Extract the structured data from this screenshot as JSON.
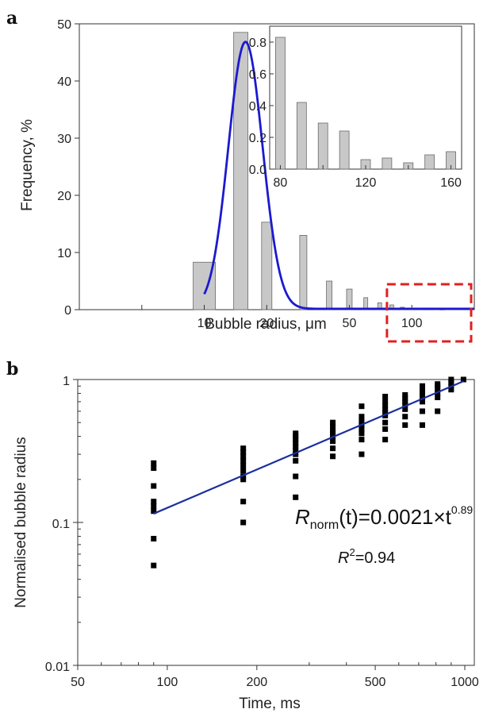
{
  "panels": {
    "a": "a",
    "b": "b"
  },
  "chart_data": [
    {
      "id": "a",
      "type": "bar",
      "xscale": "log",
      "xlabel": "Bubble radius, μm",
      "ylabel": "Frequency, %",
      "xlim": [
        2.5,
        200
      ],
      "ylim": [
        0,
        50
      ],
      "xticks": [
        10,
        20,
        50,
        100
      ],
      "yticks": [
        0,
        10,
        20,
        30,
        40,
        50
      ],
      "bars": {
        "x": [
          10,
          15,
          20,
          30,
          40,
          50,
          60,
          70,
          80,
          90,
          100,
          110,
          120,
          130,
          140,
          150,
          160
        ],
        "values": [
          8.3,
          48.5,
          15.3,
          13.0,
          5.0,
          3.6,
          2.1,
          1.2,
          0.83,
          0.42,
          0.29,
          0.24,
          0.06,
          0.07,
          0.04,
          0.09,
          0.11
        ]
      },
      "fit": {
        "type": "lognormal",
        "peak_x": 15.8,
        "peak_y": 46.7,
        "sigma_ln": 0.19,
        "x_start": 10,
        "color": "#1a1ad0"
      },
      "highlight_box": {
        "x": [
          80,
          200
        ],
        "color": "#e02020"
      },
      "bar_color": "#c8c8c8",
      "grid": false
    },
    {
      "id": "a-inset",
      "type": "bar",
      "xlim": [
        75,
        165
      ],
      "ylim": [
        0,
        0.9
      ],
      "xticks": [
        80,
        120,
        160
      ],
      "yticks": [
        0.0,
        0.2,
        0.4,
        0.6,
        0.8
      ],
      "bars": {
        "x": [
          80,
          90,
          100,
          110,
          120,
          130,
          140,
          150,
          160
        ],
        "values": [
          0.83,
          0.42,
          0.29,
          0.24,
          0.06,
          0.07,
          0.04,
          0.09,
          0.11
        ]
      },
      "bar_color": "#c8c8c8"
    },
    {
      "id": "b",
      "type": "scatter",
      "xscale": "log",
      "yscale": "log",
      "xlabel": "Time, ms",
      "ylabel": "Normalised bubble radius",
      "xlim": [
        50,
        1000
      ],
      "ylim": [
        0.01,
        1
      ],
      "xticks": [
        50,
        100,
        200,
        500,
        1000
      ],
      "yticks": [
        0.01,
        0.1,
        1
      ],
      "points": [
        {
          "x": 90,
          "y": [
            0.26,
            0.24,
            0.18,
            0.14,
            0.13,
            0.12,
            0.077,
            0.05
          ]
        },
        {
          "x": 180,
          "y": [
            0.33,
            0.31,
            0.29,
            0.27,
            0.25,
            0.23,
            0.21,
            0.2,
            0.14,
            0.1
          ]
        },
        {
          "x": 270,
          "y": [
            0.42,
            0.4,
            0.38,
            0.36,
            0.34,
            0.32,
            0.3,
            0.27,
            0.21,
            0.15
          ]
        },
        {
          "x": 360,
          "y": [
            0.5,
            0.47,
            0.44,
            0.42,
            0.4,
            0.37,
            0.33,
            0.29
          ]
        },
        {
          "x": 450,
          "y": [
            0.65,
            0.55,
            0.51,
            0.48,
            0.45,
            0.42,
            0.38,
            0.3
          ]
        },
        {
          "x": 540,
          "y": [
            0.76,
            0.7,
            0.66,
            0.62,
            0.59,
            0.56,
            0.5,
            0.45,
            0.38
          ]
        },
        {
          "x": 630,
          "y": [
            0.78,
            0.74,
            0.7,
            0.67,
            0.62,
            0.55,
            0.48
          ]
        },
        {
          "x": 720,
          "y": [
            0.9,
            0.85,
            0.8,
            0.75,
            0.7,
            0.6,
            0.48
          ]
        },
        {
          "x": 810,
          "y": [
            0.93,
            0.9,
            0.86,
            0.8,
            0.75,
            0.6
          ]
        },
        {
          "x": 900,
          "y": [
            1.0,
            0.95,
            0.9,
            0.85
          ]
        },
        {
          "x": 990,
          "y": [
            1.0
          ]
        }
      ],
      "fit": {
        "coef": 0.0021,
        "exponent": 0.89,
        "x_range": [
          90,
          990
        ],
        "color": "#1a2fa0"
      },
      "equation": {
        "lhs": "R",
        "sub": "norm",
        "arg": "(t)",
        "rhs": "=0.0021×t",
        "sup": "0.89"
      },
      "r2": {
        "base": "R",
        "sup": "2",
        "value": "=0.94"
      },
      "marker_color": "#000000",
      "grid": false
    }
  ]
}
